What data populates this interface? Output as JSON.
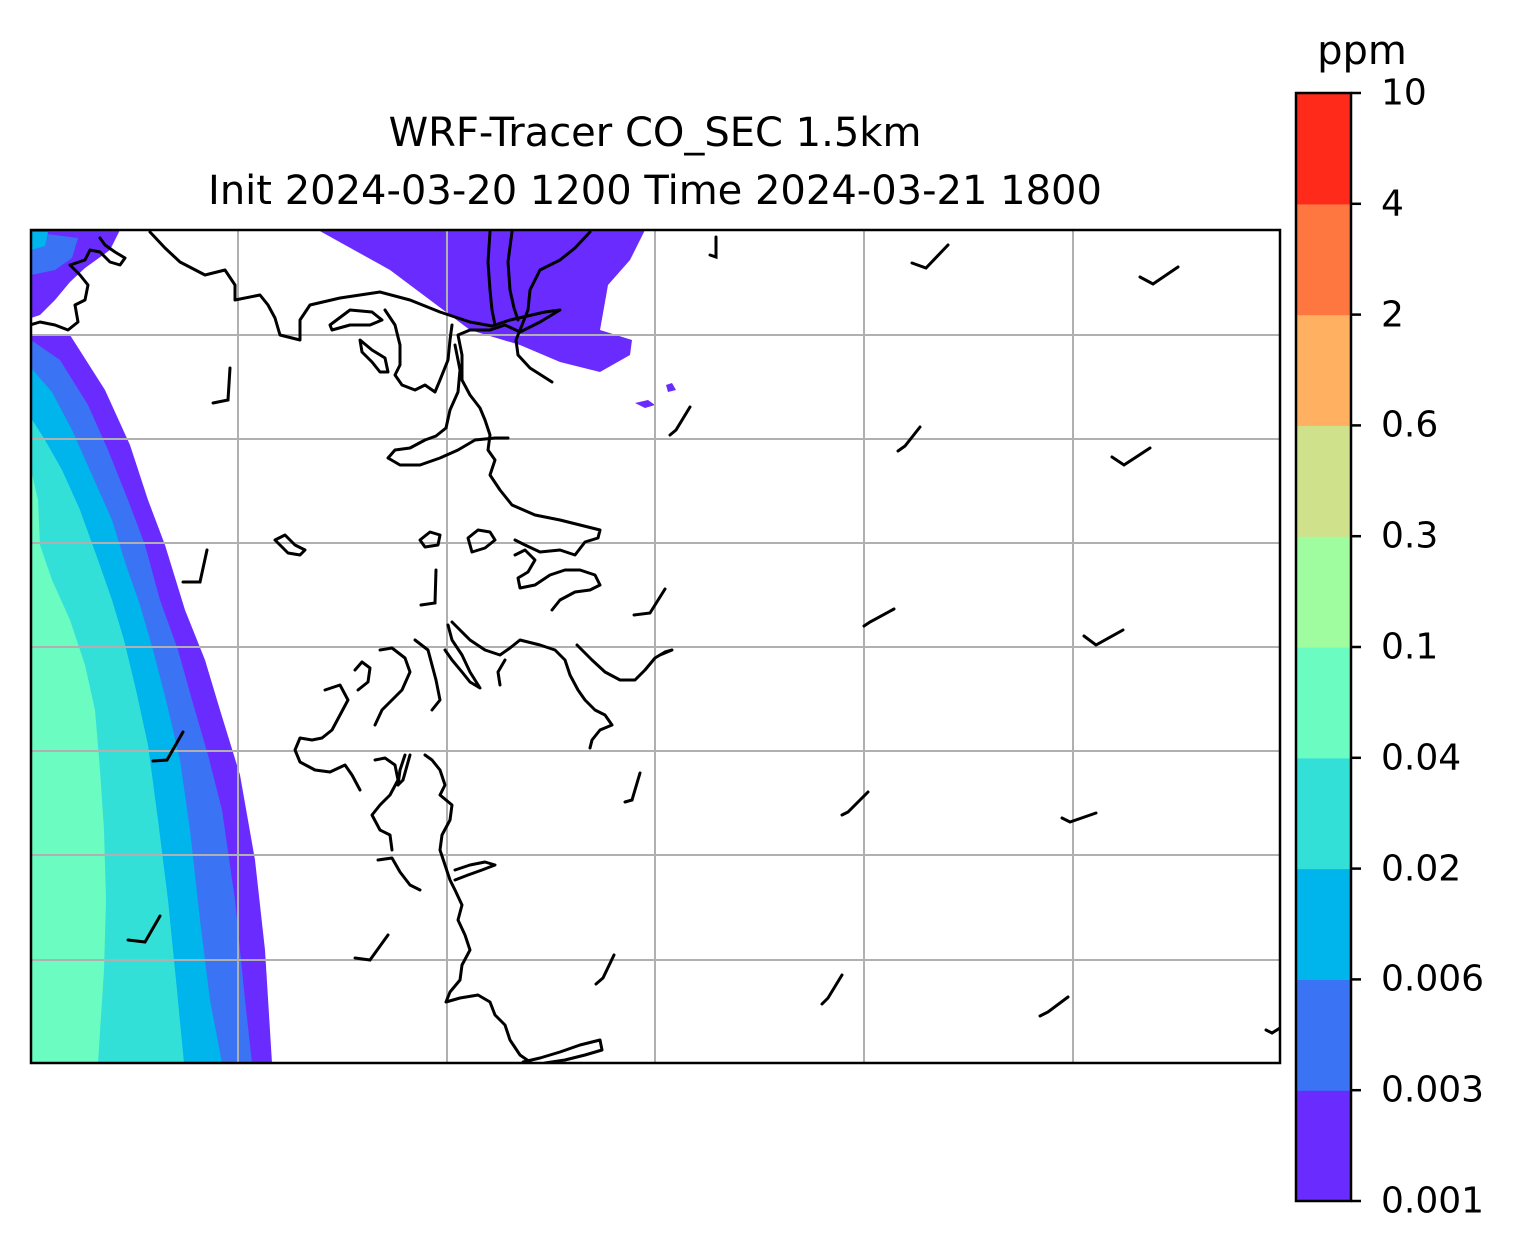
{
  "title": {
    "line1": "WRF-Tracer CO_SEC 1.5km",
    "line2": "Init 2024-03-20 1200 Time 2024-03-21 1800"
  },
  "colorbar": {
    "unit": "ppm",
    "ticks": [
      "0.001",
      "0.003",
      "0.006",
      "0.02",
      "0.04",
      "0.1",
      "0.3",
      "0.6",
      "2",
      "4",
      "10"
    ],
    "colors": [
      "#6a2bff",
      "#3b73f5",
      "#00b4ec",
      "#33e0d8",
      "#6bfcc2",
      "#9ffc9f",
      "#cfe18a",
      "#ffb060",
      "#ff7740",
      "#ff2a1a"
    ]
  },
  "map": {
    "gridlines": "on",
    "grid_color": "#b0b0b0",
    "contour_levels_shown": [
      "0.001",
      "0.003",
      "0.006",
      "0.02",
      "0.04"
    ],
    "overlays": [
      "coastline",
      "wind-barbs"
    ]
  }
}
